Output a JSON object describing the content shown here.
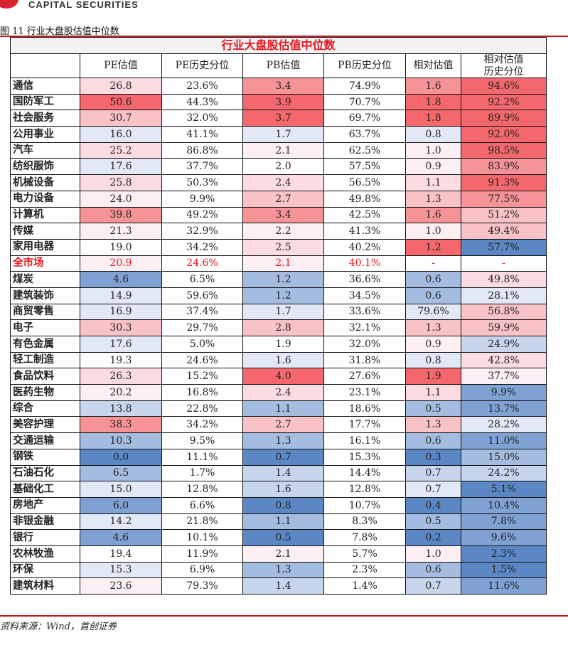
{
  "logo_text": "CAPITAL SECURITIES",
  "figure_title": "图 11 行业大盘股估值中位数",
  "table": {
    "title": "行业大盘股估值中位数",
    "headers": [
      "",
      "PE估值",
      "PE历史分位",
      "PB估值",
      "PB历史分位",
      "相对估值",
      "相对估值\n历史分位"
    ],
    "palette": {
      "-5": "#5b87c5",
      "-4": "#7fa1d3",
      "-3": "#a4bce0",
      "-2": "#c8d6ed",
      "-1": "#e2e8f5",
      "0": "#ffffff",
      "1": "#fbeff2",
      "2": "#fbdce0",
      "3": "#f8c2c6",
      "4": "#f69397",
      "5": "#f4686d"
    },
    "rows": [
      {
        "name": "通信",
        "cells": [
          "26.8",
          "23.6%",
          "3.4",
          "74.9%",
          "1.6",
          "94.6%"
        ],
        "heat": [
          2,
          0,
          4,
          0,
          4,
          5
        ]
      },
      {
        "name": "国防军工",
        "cells": [
          "50.6",
          "44.3%",
          "3.9",
          "70.7%",
          "1.8",
          "92.2%"
        ],
        "heat": [
          5,
          0,
          5,
          0,
          5,
          5
        ]
      },
      {
        "name": "社会服务",
        "cells": [
          "30.7",
          "32.0%",
          "3.7",
          "69.7%",
          "1.8",
          "89.9%"
        ],
        "heat": [
          3,
          0,
          5,
          0,
          5,
          5
        ]
      },
      {
        "name": "公用事业",
        "cells": [
          "16.0",
          "41.1%",
          "1.7",
          "63.7%",
          "0.8",
          "92.0%"
        ],
        "heat": [
          -1,
          0,
          -1,
          0,
          -1,
          5
        ]
      },
      {
        "name": "汽车",
        "cells": [
          "25.2",
          "86.8%",
          "2.1",
          "62.5%",
          "1.0",
          "98.5%"
        ],
        "heat": [
          2,
          0,
          1,
          0,
          1,
          5
        ]
      },
      {
        "name": "纺织服饰",
        "cells": [
          "17.6",
          "37.7%",
          "2.0",
          "57.5%",
          "0.9",
          "83.9%"
        ],
        "heat": [
          -1,
          0,
          0,
          0,
          1,
          4
        ]
      },
      {
        "name": "机械设备",
        "cells": [
          "25.8",
          "50.3%",
          "2.4",
          "56.5%",
          "1.1",
          "91.3%"
        ],
        "heat": [
          2,
          0,
          2,
          0,
          2,
          5
        ]
      },
      {
        "name": "电力设备",
        "cells": [
          "24.0",
          "9.9%",
          "2.7",
          "49.8%",
          "1.3",
          "77.5%"
        ],
        "heat": [
          1,
          0,
          3,
          0,
          3,
          4
        ]
      },
      {
        "name": "计算机",
        "cells": [
          "39.8",
          "49.2%",
          "3.4",
          "42.5%",
          "1.6",
          "51.2%"
        ],
        "heat": [
          4,
          0,
          4,
          0,
          4,
          3
        ]
      },
      {
        "name": "传媒",
        "cells": [
          "21.3",
          "32.9%",
          "2.2",
          "41.3%",
          "1.0",
          "49.4%"
        ],
        "heat": [
          1,
          0,
          1,
          0,
          1,
          3
        ]
      },
      {
        "name": "家用电器",
        "cells": [
          "19.0",
          "34.2%",
          "2.5",
          "40.2%",
          "1.2",
          "57.7%"
        ],
        "heat": [
          0,
          0,
          2,
          0,
          5,
          -5
        ]
      },
      {
        "name": "全市场",
        "cells": [
          "20.9",
          "24.6%",
          "2.1",
          "40.1%",
          "-",
          "-"
        ],
        "heat": [
          1,
          0,
          1,
          0,
          0,
          0
        ],
        "highlight": true
      },
      {
        "name": "煤炭",
        "cells": [
          "4.6",
          "6.5%",
          "1.2",
          "36.6%",
          "0.6",
          "49.8%"
        ],
        "heat": [
          -4,
          0,
          -3,
          0,
          -3,
          2
        ]
      },
      {
        "name": "建筑装饰",
        "cells": [
          "14.9",
          "59.6%",
          "1.2",
          "34.5%",
          "0.6",
          "28.1%"
        ],
        "heat": [
          -1,
          0,
          -3,
          0,
          -3,
          -1
        ]
      },
      {
        "name": "商贸零售",
        "cells": [
          "16.9",
          "37.4%",
          "1.7",
          "33.6%",
          "79.6%",
          "56.8%"
        ],
        "heat": [
          -1,
          0,
          -1,
          0,
          -1,
          3
        ]
      },
      {
        "name": "电子",
        "cells": [
          "30.3",
          "29.7%",
          "2.8",
          "32.1%",
          "1.3",
          "59.9%"
        ],
        "heat": [
          3,
          0,
          3,
          0,
          3,
          3
        ]
      },
      {
        "name": "有色金属",
        "cells": [
          "17.6",
          "5.0%",
          "1.9",
          "32.0%",
          "0.9",
          "24.9%"
        ],
        "heat": [
          -1,
          0,
          0,
          0,
          1,
          -2
        ]
      },
      {
        "name": "轻工制造",
        "cells": [
          "19.3",
          "24.6%",
          "1.6",
          "31.8%",
          "0.8",
          "42.8%"
        ],
        "heat": [
          0,
          0,
          -1,
          0,
          -1,
          2
        ]
      },
      {
        "name": "食品饮料",
        "cells": [
          "26.3",
          "15.2%",
          "4.0",
          "27.6%",
          "1.9",
          "37.7%"
        ],
        "heat": [
          2,
          0,
          5,
          0,
          5,
          1
        ]
      },
      {
        "name": "医药生物",
        "cells": [
          "20.2",
          "16.8%",
          "2.4",
          "23.1%",
          "1.1",
          "9.9%"
        ],
        "heat": [
          1,
          0,
          2,
          0,
          2,
          -4
        ]
      },
      {
        "name": "综合",
        "cells": [
          "13.8",
          "22.8%",
          "1.1",
          "18.6%",
          "0.5",
          "13.7%"
        ],
        "heat": [
          -2,
          0,
          -3,
          0,
          -3,
          -4
        ]
      },
      {
        "name": "美容护理",
        "cells": [
          "38.3",
          "34.2%",
          "2.7",
          "17.7%",
          "1.3",
          "28.2%"
        ],
        "heat": [
          4,
          0,
          3,
          0,
          3,
          -1
        ]
      },
      {
        "name": "交通运输",
        "cells": [
          "10.3",
          "9.5%",
          "1.3",
          "16.1%",
          "0.6",
          "11.0%"
        ],
        "heat": [
          -3,
          0,
          -3,
          0,
          -3,
          -4
        ]
      },
      {
        "name": "钢铁",
        "cells": [
          "0.0",
          "11.1%",
          "0.7",
          "15.3%",
          "0.3",
          "15.0%"
        ],
        "heat": [
          -5,
          0,
          -5,
          0,
          -5,
          -3
        ]
      },
      {
        "name": "石油石化",
        "cells": [
          "6.5",
          "1.7%",
          "1.4",
          "14.4%",
          "0.7",
          "24.2%"
        ],
        "heat": [
          -3,
          0,
          -2,
          0,
          -2,
          -2
        ]
      },
      {
        "name": "基础化工",
        "cells": [
          "15.0",
          "12.8%",
          "1.6",
          "12.8%",
          "0.7",
          "5.1%"
        ],
        "heat": [
          -1,
          0,
          -2,
          0,
          -1,
          -5
        ]
      },
      {
        "name": "房地产",
        "cells": [
          "6.0",
          "6.6%",
          "0.8",
          "10.7%",
          "0.4",
          "10.4%"
        ],
        "heat": [
          -4,
          0,
          -5,
          0,
          -5,
          -4
        ]
      },
      {
        "name": "非银金融",
        "cells": [
          "14.2",
          "21.8%",
          "1.1",
          "8.3%",
          "0.5",
          "7.8%"
        ],
        "heat": [
          -1,
          0,
          -3,
          0,
          -3,
          -4
        ]
      },
      {
        "name": "银行",
        "cells": [
          "4.6",
          "10.1%",
          "0.5",
          "7.8%",
          "0.2",
          "9.6%"
        ],
        "heat": [
          -4,
          0,
          -5,
          0,
          -5,
          -4
        ]
      },
      {
        "name": "农林牧渔",
        "cells": [
          "19.4",
          "11.9%",
          "2.1",
          "5.7%",
          "1.0",
          "2.3%"
        ],
        "heat": [
          0,
          0,
          1,
          0,
          1,
          -5
        ]
      },
      {
        "name": "环保",
        "cells": [
          "15.3",
          "6.9%",
          "1.3",
          "2.3%",
          "0.6",
          "1.5%"
        ],
        "heat": [
          -1,
          0,
          -3,
          0,
          -3,
          -5
        ]
      },
      {
        "name": "建筑材料",
        "cells": [
          "23.6",
          "79.3%",
          "1.4",
          "1.4%",
          "0.7",
          "11.6%"
        ],
        "heat": [
          1,
          0,
          -2,
          0,
          -2,
          -4
        ]
      }
    ]
  },
  "source": "资料来源：Wind，首创证券"
}
